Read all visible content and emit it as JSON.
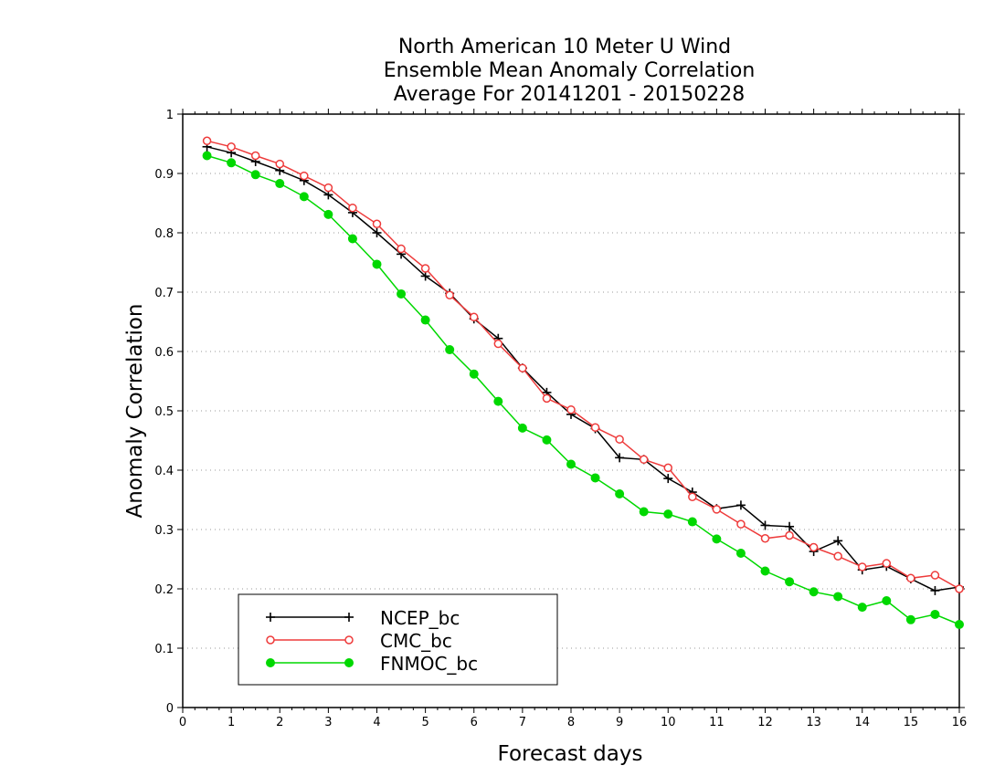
{
  "chart_data": {
    "type": "line",
    "title_lines": [
      "North American 10 Meter U Wind",
      "Ensemble Mean Anomaly Correlation",
      "Average For 20141201 - 20150228"
    ],
    "xlabel": "Forecast days",
    "ylabel": "Anomaly Correlation",
    "xlim": [
      0,
      16
    ],
    "ylim": [
      0,
      1
    ],
    "xticks": [
      "0",
      "1",
      "2",
      "3",
      "4",
      "5",
      "6",
      "7",
      "8",
      "9",
      "10",
      "11",
      "12",
      "13",
      "14",
      "15",
      "16"
    ],
    "yticks": [
      "0",
      "0.1",
      "0.2",
      "0.3",
      "0.4",
      "0.5",
      "0.6",
      "0.7",
      "0.8",
      "0.9",
      "1"
    ],
    "grid": "horizontal dotted",
    "legend_position": "bottom-left",
    "x": [
      0.5,
      1,
      1.5,
      2,
      2.5,
      3,
      3.5,
      4,
      4.5,
      5,
      5.5,
      6,
      6.5,
      7,
      7.5,
      8,
      8.5,
      9,
      9.5,
      10,
      10.5,
      11,
      11.5,
      12,
      12.5,
      13,
      13.5,
      14,
      14.5,
      15,
      15.5,
      16
    ],
    "series": [
      {
        "name": "NCEP_bc",
        "color": "#000000",
        "marker": "plus",
        "values": [
          0.945,
          0.935,
          0.92,
          0.905,
          0.888,
          0.864,
          0.834,
          0.8,
          0.764,
          0.727,
          0.698,
          0.655,
          0.622,
          0.572,
          0.531,
          0.494,
          0.47,
          0.421,
          0.418,
          0.386,
          0.363,
          0.335,
          0.341,
          0.307,
          0.305,
          0.263,
          0.281,
          0.232,
          0.238,
          0.217,
          0.197,
          0.203
        ]
      },
      {
        "name": "CMC_bc",
        "color": "#ee3b3b",
        "marker": "open-circle",
        "values": [
          0.955,
          0.945,
          0.93,
          0.916,
          0.896,
          0.876,
          0.842,
          0.815,
          0.773,
          0.74,
          0.695,
          0.658,
          0.613,
          0.572,
          0.521,
          0.502,
          0.472,
          0.452,
          0.418,
          0.404,
          0.355,
          0.334,
          0.309,
          0.285,
          0.29,
          0.27,
          0.255,
          0.237,
          0.243,
          0.218,
          0.223,
          0.2
        ]
      },
      {
        "name": "FNMOC_bc",
        "color": "#00d800",
        "marker": "filled-circle",
        "values": [
          0.93,
          0.918,
          0.898,
          0.883,
          0.861,
          0.831,
          0.79,
          0.747,
          0.697,
          0.653,
          0.603,
          0.562,
          0.516,
          0.471,
          0.451,
          0.41,
          0.387,
          0.36,
          0.33,
          0.326,
          0.313,
          0.284,
          0.26,
          0.23,
          0.212,
          0.195,
          0.187,
          0.169,
          0.18,
          0.148,
          0.157,
          0.14
        ]
      }
    ]
  }
}
